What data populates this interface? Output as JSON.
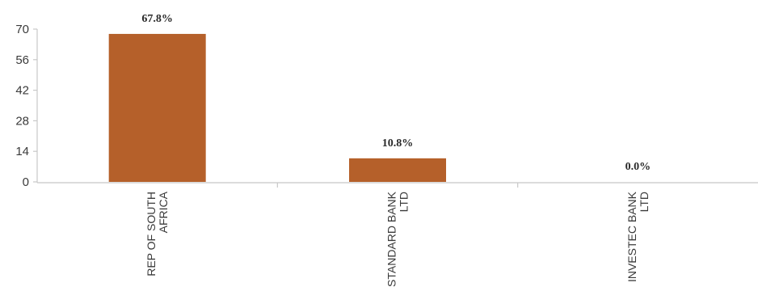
{
  "chart_data": {
    "type": "bar",
    "categories": [
      [
        "REP OF SOUTH",
        "AFRICA"
      ],
      [
        "STANDARD BANK",
        "LTD"
      ],
      [
        "INVESTEC BANK",
        "LTD"
      ]
    ],
    "values": [
      67.8,
      10.8,
      0.0
    ],
    "data_labels": [
      "67.8%",
      "10.8%",
      "0.0%"
    ],
    "y_ticks": [
      0,
      14,
      28,
      42,
      56,
      70
    ],
    "ylim": [
      0,
      70
    ],
    "bar_color": "#b5602a",
    "grid": false,
    "legend": "none"
  }
}
